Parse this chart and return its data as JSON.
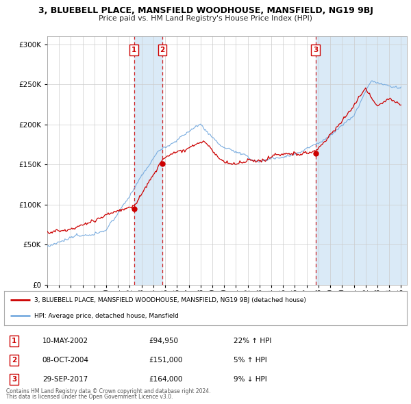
{
  "title": "3, BLUEBELL PLACE, MANSFIELD WOODHOUSE, MANSFIELD, NG19 9BJ",
  "subtitle": "Price paid vs. HM Land Registry's House Price Index (HPI)",
  "legend_line1": "3, BLUEBELL PLACE, MANSFIELD WOODHOUSE, MANSFIELD, NG19 9BJ (detached house)",
  "legend_line2": "HPI: Average price, detached house, Mansfield",
  "footer1": "Contains HM Land Registry data © Crown copyright and database right 2024.",
  "footer2": "This data is licensed under the Open Government Licence v3.0.",
  "transactions": [
    {
      "num": 1,
      "date": "10-MAY-2002",
      "price": "£94,950",
      "hpi": "22% ↑ HPI",
      "year": 2002.36
    },
    {
      "num": 2,
      "date": "08-OCT-2004",
      "price": "£151,000",
      "hpi": "5% ↑ HPI",
      "year": 2004.77
    },
    {
      "num": 3,
      "date": "29-SEP-2017",
      "price": "£164,000",
      "hpi": "9% ↓ HPI",
      "year": 2017.75
    }
  ],
  "transaction_prices": [
    94950,
    151000,
    164000
  ],
  "red_color": "#cc0000",
  "blue_color": "#7aade0",
  "shade_color": "#daeaf7",
  "grid_color": "#cccccc",
  "bg_color": "#ffffff",
  "ylim": [
    0,
    310000
  ],
  "xlim_start": 1995.0,
  "xlim_end": 2025.5
}
